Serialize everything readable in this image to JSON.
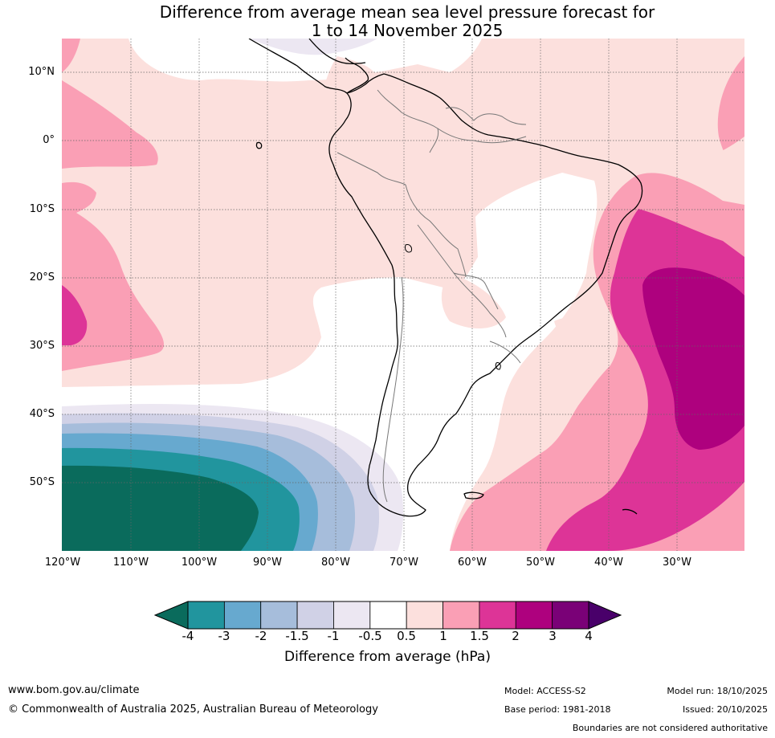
{
  "title": {
    "line1": "Difference from average mean sea level pressure forecast for",
    "line2": "1 to 14 November 2025"
  },
  "map": {
    "lat_labels": [
      "10°N",
      "0°",
      "10°S",
      "20°S",
      "30°S",
      "40°S",
      "50°S"
    ],
    "lon_labels": [
      "120°W",
      "110°W",
      "100°W",
      "90°W",
      "80°W",
      "70°W",
      "60°W",
      "50°W",
      "40°W",
      "30°W"
    ],
    "colors": {
      "c_m4": "#0a6b5c",
      "c_m3": "#21959e",
      "c_m2": "#67a9cf",
      "c_m15": "#a6bddb",
      "c_m1": "#d0d1e6",
      "c_m05": "#ece7f2",
      "c_0": "#ffffff",
      "c_05": "#fce0dd",
      "c_1": "#fa9fb5",
      "c_15": "#dd3497",
      "c_2": "#ae017e",
      "c_3": "#7a0177",
      "c_4": "#49006a"
    }
  },
  "colorbar": {
    "ticks": [
      "-4",
      "-3",
      "-2",
      "-1.5",
      "-1",
      "-0.5",
      "0.5",
      "1",
      "1.5",
      "2",
      "3",
      "4"
    ],
    "colors": [
      "#21959e",
      "#67a9cf",
      "#a6bddb",
      "#d0d1e6",
      "#ece7f2",
      "#ffffff",
      "#fce0dd",
      "#fa9fb5",
      "#dd3497",
      "#ae017e",
      "#7a0177"
    ],
    "low_extend_color": "#0a6b5c",
    "high_extend_color": "#49006a",
    "title": "Difference from average (hPa)"
  },
  "footer": {
    "website": "www.bom.gov.au/climate",
    "copyright": "© Commonwealth of Australia 2025, Australian Bureau of Meteorology",
    "model": "Model: ACCESS-S2",
    "base_period": "Base period: 1981-2018",
    "model_run": "Model run: 18/10/2025",
    "issued": "Issued: 20/10/2025",
    "disclaimer": "Boundaries are not considered authoritative"
  }
}
